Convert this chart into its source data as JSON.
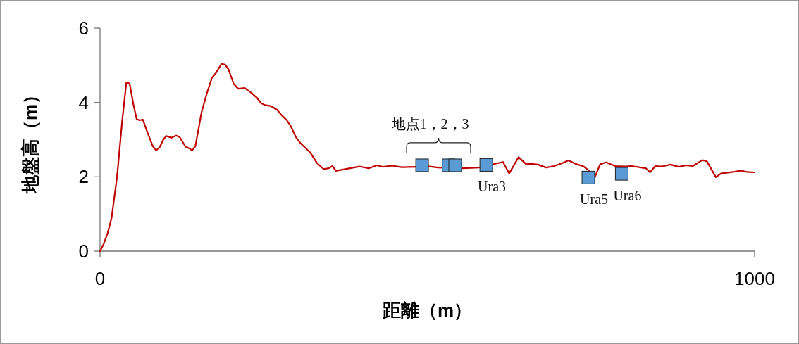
{
  "chart_data": {
    "type": "line",
    "xlabel": "距離（m）",
    "ylabel": "地盤高（m）",
    "xlim": [
      0,
      1000
    ],
    "xticks": [
      0,
      1000
    ],
    "ylim": [
      0,
      6
    ],
    "yticks": [
      0,
      2,
      4,
      6
    ],
    "grid": false,
    "series": [
      {
        "color": "#c00000",
        "marker": "none",
        "x": [
          0,
          5.7,
          11.5,
          17.6,
          25.8,
          33.7,
          40.2,
          45.2,
          50.9,
          56,
          60.6,
          65.3,
          73.2,
          80.4,
          85.8,
          91.2,
          96.6,
          101.2,
          109,
          116.3,
          121.6,
          130.6,
          136,
          140.7,
          145.7,
          155,
          162.9,
          170.8,
          177.3,
          185.5,
          190.9,
          196,
          204.2,
          211.3,
          221,
          231.1,
          240,
          245.4,
          251.9,
          261.6,
          270.5,
          277.7,
          284.9,
          291.4,
          299.2,
          306.4,
          320.8,
          331.5,
          341.5,
          349.5,
          355,
          360.3,
          381.8,
          396,
          410.4,
          423,
          432,
          446.4,
          460.7,
          482,
          503.8,
          516.3,
          554,
          579,
          608.5,
          615.6,
          625,
          639.4,
          651,
          659,
          668.7,
          681.4,
          694,
          706.4,
          715.5,
          726.3,
          738.8,
          746,
          755,
          764,
          773,
          787.2,
          801.6,
          812,
          826.7,
          833.9,
          840.3,
          848.2,
          859,
          871.6,
          884,
          895,
          905.6,
          920,
          927,
          940.8,
          948.7,
          967,
          979.2,
          988,
          1000
        ],
        "values": [
          0,
          0.2,
          0.48,
          0.89,
          1.97,
          3.48,
          4.54,
          4.51,
          3.95,
          3.55,
          3.52,
          3.54,
          3.16,
          2.83,
          2.71,
          2.8,
          3,
          3.1,
          3.05,
          3.11,
          3.07,
          2.81,
          2.77,
          2.71,
          2.83,
          3.73,
          4.23,
          4.66,
          4.8,
          5.04,
          5.02,
          4.9,
          4.5,
          4.37,
          4.39,
          4.26,
          4.12,
          3.99,
          3.93,
          3.9,
          3.8,
          3.65,
          3.53,
          3.36,
          3.07,
          2.9,
          2.66,
          2.37,
          2.21,
          2.23,
          2.29,
          2.16,
          2.23,
          2.28,
          2.23,
          2.31,
          2.27,
          2.3,
          2.26,
          2.27,
          2.28,
          2.25,
          2.23,
          2.25,
          2.37,
          2.4,
          2.09,
          2.53,
          2.34,
          2.35,
          2.33,
          2.25,
          2.29,
          2.37,
          2.44,
          2.35,
          2.28,
          2.18,
          1.95,
          2.34,
          2.39,
          2.29,
          2.28,
          2.29,
          2.25,
          2.23,
          2.12,
          2.29,
          2.28,
          2.33,
          2.27,
          2.31,
          2.29,
          2.45,
          2.42,
          1.99,
          2.09,
          2.13,
          2.17,
          2.13,
          2.12
        ]
      },
      {
        "type": "scatter",
        "color": "#5b9bd5",
        "marker": "square",
        "x": [
          492,
          532.5,
          542.5,
          590,
          746,
          797
        ],
        "values": [
          2.31,
          2.31,
          2.31,
          2.32,
          1.98,
          2.08
        ]
      }
    ],
    "annotations": [
      "地点1，2，3",
      {
        "text": "Ura3",
        "x": 590,
        "y": 2.32
      },
      {
        "text": "Ura5",
        "x": 746,
        "y": 1.98
      },
      {
        "text": "Ura6",
        "x": 797,
        "y": 2.08
      }
    ]
  }
}
